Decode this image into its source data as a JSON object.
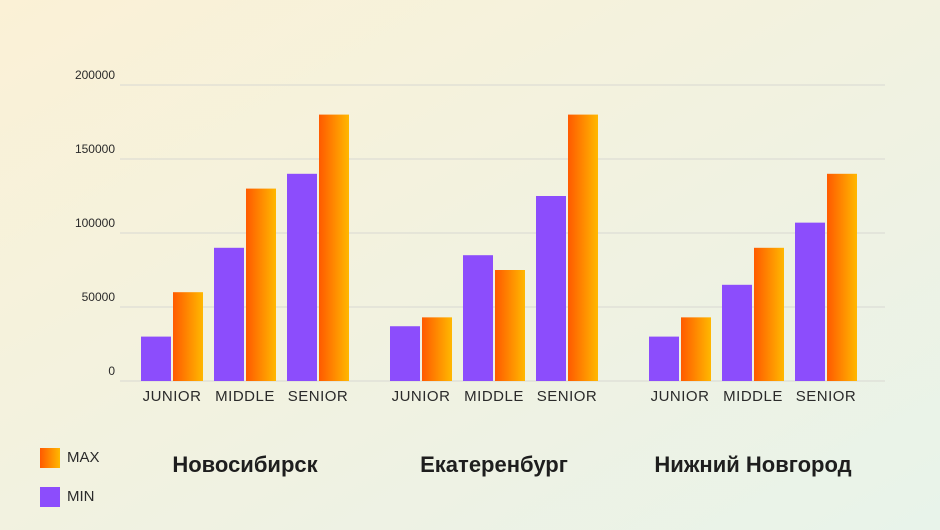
{
  "chart_data": {
    "type": "bar",
    "categories": [
      "JUNIOR",
      "MIDDLE",
      "SENIOR",
      "JUNIOR",
      "MIDDLE",
      "SENIOR",
      "JUNIOR",
      "MIDDLE",
      "SENIOR"
    ],
    "groups": [
      "Новосибирск",
      "Екатеренбург",
      "Нижний Новгород"
    ],
    "series": [
      {
        "name": "MIN",
        "color": "#8c4dfc",
        "values": [
          30000,
          90000,
          140000,
          37000,
          85000,
          125000,
          30000,
          65000,
          107000
        ]
      },
      {
        "name": "MAX",
        "color": "#ff5a00",
        "values": [
          60000,
          130000,
          180000,
          43000,
          75000,
          180000,
          43000,
          90000,
          140000
        ]
      }
    ],
    "ylim": [
      0,
      200000
    ],
    "yticks": [
      0,
      50000,
      100000,
      150000,
      200000
    ],
    "grid": true
  }
}
